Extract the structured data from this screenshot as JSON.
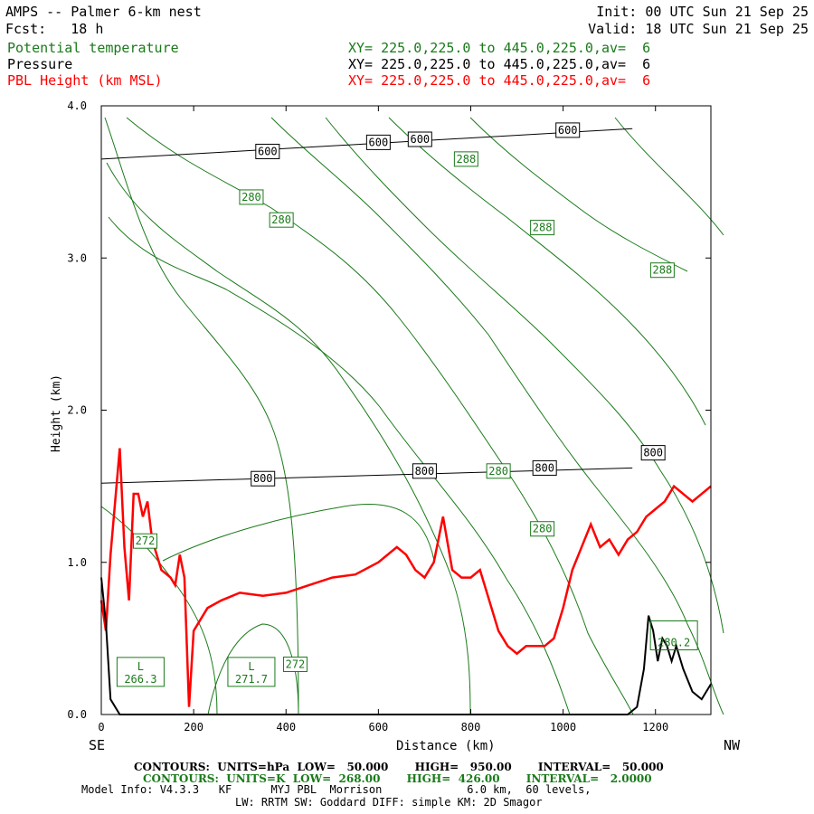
{
  "header": {
    "title": "AMPS -- Palmer 6-km nest",
    "forecast": "Fcst:   18 h",
    "init": "Init: 00 UTC Sun 21 Sep 25",
    "valid": "Valid: 18 UTC Sun 21 Sep 25"
  },
  "fields": [
    {
      "name": "Potential temperature",
      "xy": "XY= 225.0,225.0 to 445.0,225.0,av=  6",
      "color": "#1a7a1a"
    },
    {
      "name": "Pressure",
      "xy": "XY= 225.0,225.0 to 445.0,225.0,av=  6",
      "color": "#000000"
    },
    {
      "name": "PBL Height (km MSL)",
      "xy": "XY= 225.0,225.0 to 445.0,225.0,av=  6",
      "color": "#ff0000"
    }
  ],
  "footer": {
    "pressure_contours": "CONTOURS:  UNITS=hPa  LOW=   50.000       HIGH=   950.00       INTERVAL=   50.000",
    "theta_contours": "CONTOURS:  UNITS=K  LOW=  268.00       HIGH=  426.00       INTERVAL=   2.0000",
    "model_info": "Model Info: V4.3.3   KF      MYJ PBL  Morrison             6.0 km,  60 levels,",
    "physics": "LW: RRTM SW: Goddard DIFF: simple KM: 2D Smagor"
  },
  "chart_data": {
    "type": "line",
    "xlabel": "Distance (km)",
    "ylabel": "Height (km)",
    "xlim": [
      0,
      1320
    ],
    "ylim": [
      0,
      4.0
    ],
    "x_ticks": [
      "0",
      "200",
      "400",
      "600",
      "800",
      "1000",
      "1200"
    ],
    "y_ticks": [
      "0.0",
      "1.0",
      "2.0",
      "3.0",
      "4.0"
    ],
    "left_end_label": "SE",
    "right_end_label": "NW",
    "grid": false,
    "series": [
      {
        "name": "PBL Height (km MSL)",
        "color": "#ff0000",
        "x": [
          0,
          10,
          20,
          30,
          40,
          50,
          60,
          70,
          80,
          90,
          100,
          110,
          130,
          150,
          160,
          170,
          180,
          190,
          200,
          210,
          230,
          260,
          300,
          350,
          400,
          450,
          500,
          550,
          600,
          640,
          660,
          680,
          700,
          720,
          740,
          760,
          780,
          800,
          820,
          840,
          860,
          880,
          900,
          920,
          940,
          960,
          980,
          1000,
          1020,
          1040,
          1060,
          1080,
          1100,
          1120,
          1140,
          1160,
          1180,
          1200,
          1220,
          1240,
          1260,
          1280,
          1300,
          1320
        ],
        "y": [
          0.75,
          0.55,
          1.05,
          1.4,
          1.75,
          1.1,
          0.75,
          1.45,
          1.45,
          1.3,
          1.4,
          1.15,
          0.95,
          0.9,
          0.85,
          1.05,
          0.9,
          0.05,
          0.55,
          0.6,
          0.7,
          0.75,
          0.8,
          0.78,
          0.8,
          0.85,
          0.9,
          0.92,
          1.0,
          1.1,
          1.05,
          0.95,
          0.9,
          1.0,
          1.3,
          0.95,
          0.9,
          0.9,
          0.95,
          0.75,
          0.55,
          0.45,
          0.4,
          0.45,
          0.45,
          0.45,
          0.5,
          0.7,
          0.95,
          1.1,
          1.25,
          1.1,
          1.15,
          1.05,
          1.15,
          1.2,
          1.3,
          1.35,
          1.4,
          1.5,
          1.45,
          1.4,
          1.45,
          1.5
        ]
      },
      {
        "name": "Terrain",
        "color": "#000000",
        "x": [
          0,
          10,
          20,
          40,
          60,
          100,
          200,
          400,
          800,
          1100,
          1140,
          1160,
          1175,
          1185,
          1195,
          1205,
          1215,
          1225,
          1235,
          1245,
          1260,
          1280,
          1300,
          1320
        ],
        "y": [
          0.9,
          0.6,
          0.1,
          0.0,
          0.0,
          0.0,
          0.0,
          0.0,
          0.0,
          0.0,
          0.0,
          0.05,
          0.3,
          0.65,
          0.55,
          0.35,
          0.5,
          0.45,
          0.35,
          0.45,
          0.3,
          0.15,
          0.1,
          0.2
        ]
      }
    ],
    "pressure_isobars": [
      {
        "level": 600,
        "x": [
          0,
          1150
        ],
        "y": [
          3.65,
          3.85
        ]
      },
      {
        "level": 800,
        "x": [
          0,
          1150
        ],
        "y": [
          1.52,
          1.62
        ]
      }
    ],
    "contour_labels": [
      {
        "text": "600",
        "color": "#000000",
        "x": 360,
        "y": 3.7
      },
      {
        "text": "600",
        "color": "#000000",
        "x": 600,
        "y": 3.76
      },
      {
        "text": "600",
        "color": "#000000",
        "x": 690,
        "y": 3.78
      },
      {
        "text": "600",
        "color": "#000000",
        "x": 1010,
        "y": 3.84
      },
      {
        "text": "288",
        "color": "#1a7a1a",
        "x": 790,
        "y": 3.65
      },
      {
        "text": "280",
        "color": "#1a7a1a",
        "x": 325,
        "y": 3.4
      },
      {
        "text": "280",
        "color": "#1a7a1a",
        "x": 390,
        "y": 3.25
      },
      {
        "text": "288",
        "color": "#1a7a1a",
        "x": 955,
        "y": 3.2
      },
      {
        "text": "288",
        "color": "#1a7a1a",
        "x": 1215,
        "y": 2.92
      },
      {
        "text": "800",
        "color": "#000000",
        "x": 350,
        "y": 1.55
      },
      {
        "text": "800",
        "color": "#000000",
        "x": 700,
        "y": 1.6
      },
      {
        "text": "280",
        "color": "#1a7a1a",
        "x": 860,
        "y": 1.6
      },
      {
        "text": "800",
        "color": "#000000",
        "x": 960,
        "y": 1.62
      },
      {
        "text": "800",
        "color": "#000000",
        "x": 1195,
        "y": 1.72
      },
      {
        "text": "280",
        "color": "#1a7a1a",
        "x": 955,
        "y": 1.22
      },
      {
        "text": "272",
        "color": "#1a7a1a",
        "x": 95,
        "y": 1.14
      },
      {
        "text": "272",
        "color": "#1a7a1a",
        "x": 420,
        "y": 0.33
      }
    ],
    "lows": [
      {
        "label": "L",
        "value": "266.3",
        "x": 85,
        "y": 0.28
      },
      {
        "label": "L",
        "value": "271.7",
        "x": 325,
        "y": 0.28
      },
      {
        "label": "",
        "value": "280.2",
        "x": 1240,
        "y": 0.52
      }
    ]
  }
}
